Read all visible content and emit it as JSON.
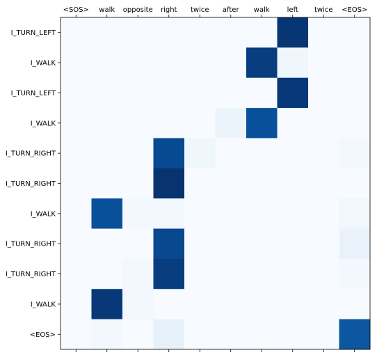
{
  "chart_data": {
    "type": "heatmap",
    "title": "",
    "xlabel": "",
    "ylabel": "",
    "x_tick_position": "top",
    "colormap": "Blues",
    "value_range": [
      0,
      1
    ],
    "grid": false,
    "x_categories": [
      "<SOS>",
      "walk",
      "opposite",
      "right",
      "twice",
      "after",
      "walk",
      "left",
      "twice",
      "<EOS>"
    ],
    "y_categories": [
      "I_TURN_LEFT",
      "I_WALK",
      "I_TURN_LEFT",
      "I_WALK",
      "I_TURN_RIGHT",
      "I_TURN_RIGHT",
      "I_WALK",
      "I_TURN_RIGHT",
      "I_TURN_RIGHT",
      "I_WALK",
      "<EOS>"
    ],
    "values": [
      [
        0,
        0,
        0,
        0,
        0,
        0,
        0,
        0.98,
        0,
        0
      ],
      [
        0,
        0,
        0,
        0,
        0,
        0,
        0.95,
        0.04,
        0,
        0
      ],
      [
        0,
        0,
        0,
        0,
        0,
        0,
        0,
        0.97,
        0,
        0
      ],
      [
        0,
        0,
        0,
        0,
        0,
        0.06,
        0.88,
        0,
        0,
        0
      ],
      [
        0,
        0,
        0,
        0.9,
        0.04,
        0,
        0,
        0,
        0,
        0.02
      ],
      [
        0,
        0,
        0,
        0.99,
        0,
        0,
        0,
        0,
        0,
        0
      ],
      [
        0,
        0.88,
        0.02,
        0.03,
        0,
        0,
        0,
        0,
        0,
        0.03
      ],
      [
        0,
        0,
        0,
        0.91,
        0,
        0,
        0,
        0,
        0,
        0.07
      ],
      [
        0,
        0,
        0.02,
        0.95,
        0,
        0,
        0,
        0,
        0,
        0.02
      ],
      [
        0,
        0.97,
        0.03,
        0,
        0,
        0,
        0,
        0,
        0,
        0
      ],
      [
        0,
        0.02,
        0,
        0.08,
        0,
        0,
        0,
        0,
        0,
        0.85
      ]
    ]
  }
}
